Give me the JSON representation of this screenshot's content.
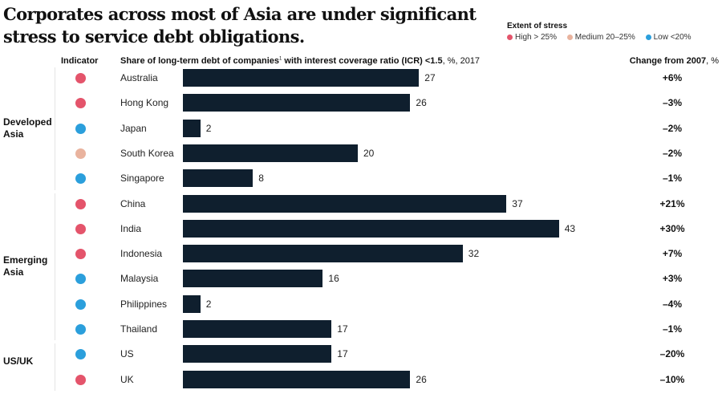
{
  "chart_data": {
    "type": "bar",
    "title": "Corporates across most of Asia are under significant stress to service debt obligations.",
    "legend": {
      "title": "Extent of stress",
      "items": [
        {
          "label": "High > 25%",
          "color": "#e4546b"
        },
        {
          "label": "Medium 20–25%",
          "color": "#e9b39e"
        },
        {
          "label": "Low <20%",
          "color": "#2b9fdc"
        }
      ]
    },
    "headers": {
      "indicator": "Indicator",
      "share_a": "Share of long-term debt of companies",
      "share_sup": "1",
      "share_b": " with interest coverage ratio (ICR) <1.5",
      "share_c": ", %, 2017",
      "change_a": "Change from 2007",
      "change_b": ", %"
    },
    "groups": [
      {
        "label": "Developed Asia",
        "rows": [
          {
            "country": "Australia",
            "value": 27,
            "stress": "high",
            "change": "+6%"
          },
          {
            "country": "Hong Kong",
            "value": 26,
            "stress": "high",
            "change": "–3%"
          },
          {
            "country": "Japan",
            "value": 2,
            "stress": "low",
            "change": "–2%"
          },
          {
            "country": "South Korea",
            "value": 20,
            "stress": "medium",
            "change": "–2%"
          },
          {
            "country": "Singapore",
            "value": 8,
            "stress": "low",
            "change": "–1%"
          }
        ]
      },
      {
        "label": "Emerging Asia",
        "rows": [
          {
            "country": "China",
            "value": 37,
            "stress": "high",
            "change": "+21%"
          },
          {
            "country": "India",
            "value": 43,
            "stress": "high",
            "change": "+30%"
          },
          {
            "country": "Indonesia",
            "value": 32,
            "stress": "high",
            "change": "+7%"
          },
          {
            "country": "Malaysia",
            "value": 16,
            "stress": "low",
            "change": "+3%"
          },
          {
            "country": "Philippines",
            "value": 2,
            "stress": "low",
            "change": "–4%"
          },
          {
            "country": "Thailand",
            "value": 17,
            "stress": "low",
            "change": "–1%"
          }
        ]
      },
      {
        "label": "US/UK",
        "rows": [
          {
            "country": "US",
            "value": 17,
            "stress": "low",
            "change": "–20%"
          },
          {
            "country": "UK",
            "value": 26,
            "stress": "high",
            "change": "–10%"
          }
        ]
      }
    ],
    "colors": {
      "high": "#e4546b",
      "medium": "#e9b39e",
      "low": "#2b9fdc",
      "bar": "#0f1f2e"
    }
  }
}
